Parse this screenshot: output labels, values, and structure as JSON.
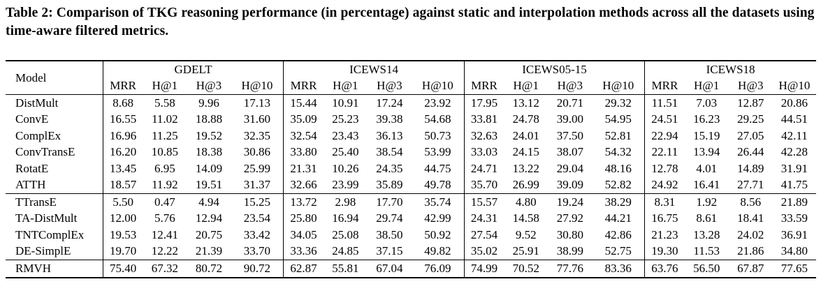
{
  "caption": "Table 2: Comparison of TKG reasoning performance (in percentage) against static and interpolation methods across all the datasets using time-aware filtered metrics.",
  "header": {
    "model_label": "Model",
    "datasets": [
      "GDELT",
      "ICEWS14",
      "ICEWS05-15",
      "ICEWS18"
    ],
    "metrics": [
      "MRR",
      "H@1",
      "H@3",
      "H@10"
    ]
  },
  "groups": [
    {
      "rows": [
        {
          "model": "DistMult",
          "values": [
            "8.68",
            "5.58",
            "9.96",
            "17.13",
            "15.44",
            "10.91",
            "17.24",
            "23.92",
            "17.95",
            "13.12",
            "20.71",
            "29.32",
            "11.51",
            "7.03",
            "12.87",
            "20.86"
          ]
        },
        {
          "model": "ConvE",
          "values": [
            "16.55",
            "11.02",
            "18.88",
            "31.60",
            "35.09",
            "25.23",
            "39.38",
            "54.68",
            "33.81",
            "24.78",
            "39.00",
            "54.95",
            "24.51",
            "16.23",
            "29.25",
            "44.51"
          ]
        },
        {
          "model": "ComplEx",
          "values": [
            "16.96",
            "11.25",
            "19.52",
            "32.35",
            "32.54",
            "23.43",
            "36.13",
            "50.73",
            "32.63",
            "24.01",
            "37.50",
            "52.81",
            "22.94",
            "15.19",
            "27.05",
            "42.11"
          ]
        },
        {
          "model": "ConvTransE",
          "values": [
            "16.20",
            "10.85",
            "18.38",
            "30.86",
            "33.80",
            "25.40",
            "38.54",
            "53.99",
            "33.03",
            "24.15",
            "38.07",
            "54.32",
            "22.11",
            "13.94",
            "26.44",
            "42.28"
          ]
        },
        {
          "model": "RotatE",
          "values": [
            "13.45",
            "6.95",
            "14.09",
            "25.99",
            "21.31",
            "10.26",
            "24.35",
            "44.75",
            "24.71",
            "13.22",
            "29.04",
            "48.16",
            "12.78",
            "4.01",
            "14.89",
            "31.91"
          ]
        },
        {
          "model": "ATTH",
          "values": [
            "18.57",
            "11.92",
            "19.51",
            "31.37",
            "32.66",
            "23.99",
            "35.89",
            "49.78",
            "35.70",
            "26.99",
            "39.09",
            "52.82",
            "24.92",
            "16.41",
            "27.71",
            "41.75"
          ]
        }
      ]
    },
    {
      "rows": [
        {
          "model": "TTransE",
          "values": [
            "5.50",
            "0.47",
            "4.94",
            "15.25",
            "13.72",
            "2.98",
            "17.70",
            "35.74",
            "15.57",
            "4.80",
            "19.24",
            "38.29",
            "8.31",
            "1.92",
            "8.56",
            "21.89"
          ]
        },
        {
          "model": "TA-DistMult",
          "values": [
            "12.00",
            "5.76",
            "12.94",
            "23.54",
            "25.80",
            "16.94",
            "29.74",
            "42.99",
            "24.31",
            "14.58",
            "27.92",
            "44.21",
            "16.75",
            "8.61",
            "18.41",
            "33.59"
          ]
        },
        {
          "model": "TNTComplEx",
          "values": [
            "19.53",
            "12.41",
            "20.75",
            "33.42",
            "34.05",
            "25.08",
            "38.50",
            "50.92",
            "27.54",
            "9.52",
            "30.80",
            "42.86",
            "21.23",
            "13.28",
            "24.02",
            "36.91"
          ]
        },
        {
          "model": "DE-SimplE",
          "values": [
            "19.70",
            "12.22",
            "21.39",
            "33.70",
            "33.36",
            "24.85",
            "37.15",
            "49.82",
            "35.02",
            "25.91",
            "38.99",
            "52.75",
            "19.30",
            "11.53",
            "21.86",
            "34.80"
          ]
        }
      ]
    },
    {
      "rows": [
        {
          "model": "RMVH",
          "values": [
            "75.40",
            "67.32",
            "80.72",
            "90.72",
            "62.87",
            "55.81",
            "67.04",
            "76.09",
            "74.99",
            "70.52",
            "77.76",
            "83.36",
            "63.76",
            "56.50",
            "67.87",
            "77.65"
          ]
        }
      ]
    }
  ]
}
